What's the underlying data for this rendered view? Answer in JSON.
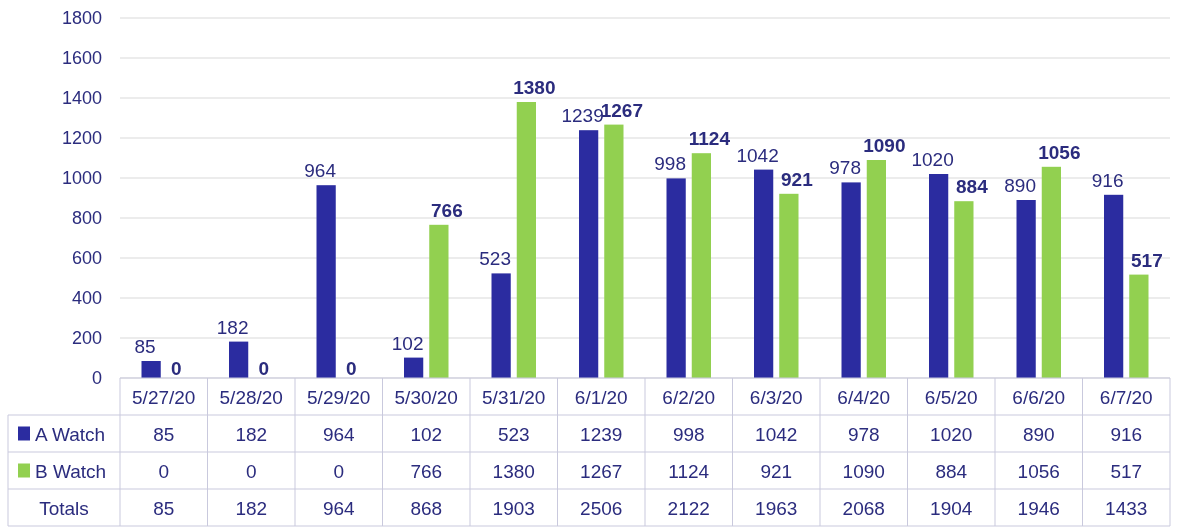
{
  "chart_data": {
    "type": "bar",
    "categories": [
      "5/27/20",
      "5/28/20",
      "5/29/20",
      "5/30/20",
      "5/31/20",
      "6/1/20",
      "6/2/20",
      "6/3/20",
      "6/4/20",
      "6/5/20",
      "6/6/20",
      "6/7/20"
    ],
    "series": [
      {
        "name": "A Watch",
        "color": "#2b2ca0",
        "values": [
          85,
          182,
          964,
          102,
          523,
          1239,
          998,
          1042,
          978,
          1020,
          890,
          916
        ],
        "value_labels": [
          "85",
          "182",
          "964",
          "102",
          "523",
          "1239",
          "998",
          "1042",
          "978",
          "1020",
          "890",
          "916"
        ]
      },
      {
        "name": "B Watch",
        "color": "#92d050",
        "values": [
          0,
          0,
          0,
          766,
          1380,
          1267,
          1124,
          921,
          1090,
          884,
          1056,
          517
        ],
        "value_labels": [
          "0",
          "0",
          "0",
          "766",
          "1380",
          "1267",
          "1124",
          "921",
          "1090",
          "884",
          "1056",
          "517"
        ]
      }
    ],
    "annotations": [
      "85",
      "182",
      "964",
      "102",
      "523",
      "1239",
      "998",
      "1042",
      "978",
      "1020",
      "890",
      "916",
      "0",
      "0",
      "0",
      "766",
      "1380",
      "1267",
      "1124",
      "921",
      "1090",
      "884",
      "1056",
      "517",
      "Totals",
      "85",
      "182",
      "964",
      "868",
      "1903",
      "2506",
      "2122",
      "1963",
      "2068",
      "1904",
      "1946",
      "1433"
    ],
    "ylim": [
      0,
      1800
    ],
    "yticks": [
      0,
      200,
      400,
      600,
      800,
      1000,
      1200,
      1400,
      1600,
      1800
    ],
    "grid": "y",
    "legend": "bottom"
  }
}
